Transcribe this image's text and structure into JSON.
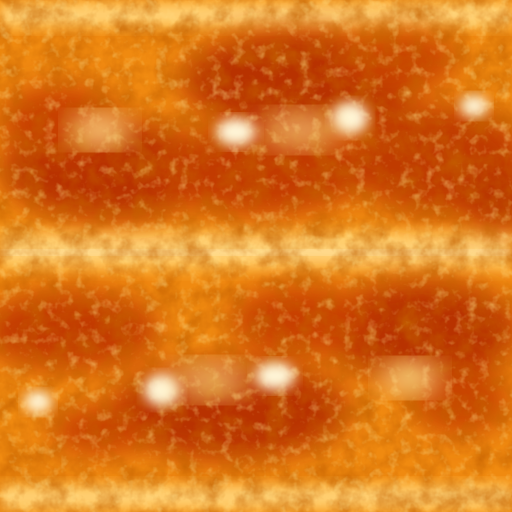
{
  "image": {
    "subject": "solar-surface-texture",
    "palette": {
      "deep": "#8a1f00",
      "dark": "#b83200",
      "mid": "#e05a08",
      "orange": "#f58a14",
      "light": "#ffb63a",
      "pale": "#ffd884",
      "hot": "#fff6d8"
    }
  }
}
